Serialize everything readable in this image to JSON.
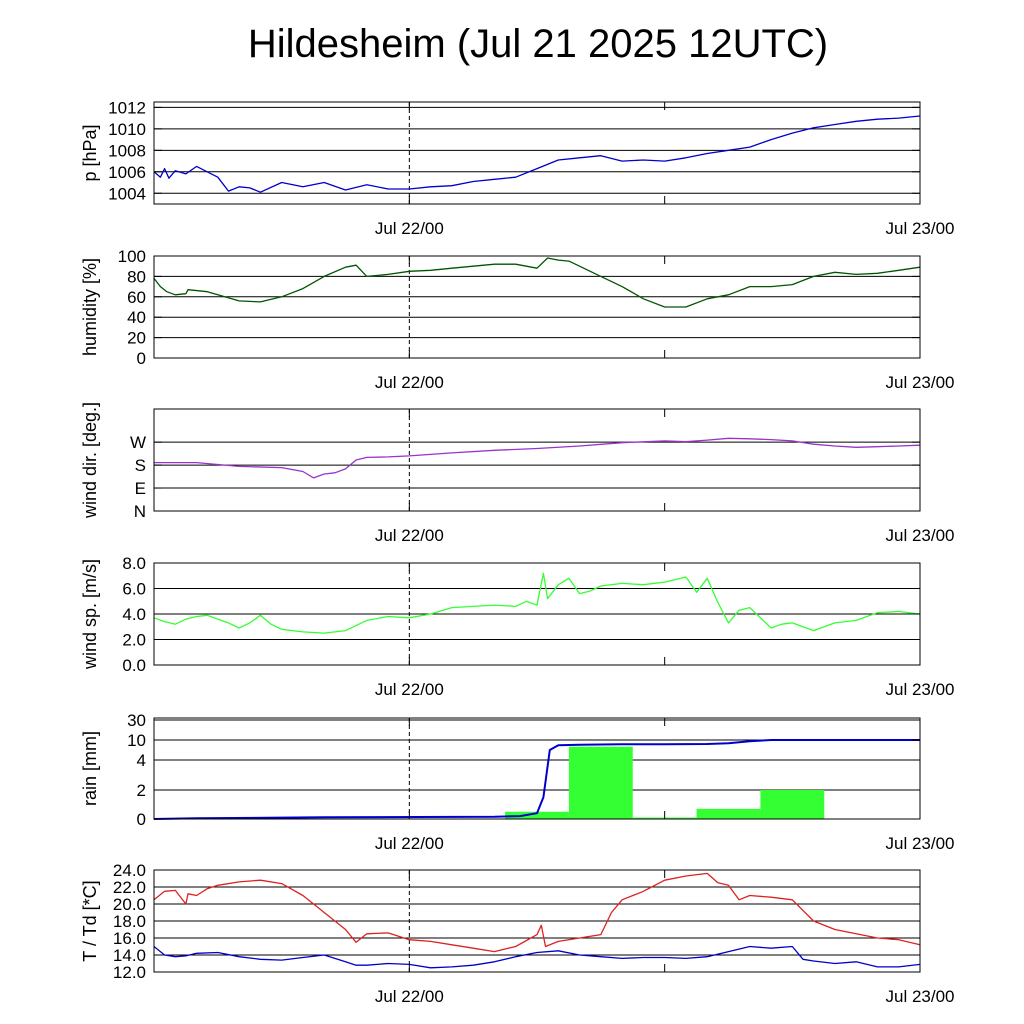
{
  "title": "Hildesheim (Jul 21 2025 12UTC)",
  "x_tick_labels": [
    "Jul 22/00",
    "Jul 23/00"
  ],
  "chart_data": [
    {
      "type": "line",
      "ylabel": "p [hPa]",
      "x_unit": "hours since Jul 21 2025 12UTC",
      "xlim": [
        0,
        36
      ],
      "ylim": [
        1003,
        1012.5
      ],
      "yticks": [
        1004,
        1006,
        1008,
        1010,
        1012
      ],
      "ytick_labels": [
        "1004",
        "1006",
        "1008",
        "1010",
        "1012"
      ],
      "series": [
        {
          "color": "#0000cc",
          "x": [
            0,
            0.3,
            0.5,
            0.7,
            1.0,
            1.5,
            2.0,
            2.5,
            3.0,
            3.5,
            4.0,
            4.5,
            5.0,
            6.0,
            7.0,
            8.0,
            9.0,
            10.0,
            11.0,
            12.0,
            13.0,
            14.0,
            15.0,
            16.0,
            17.0,
            18.0,
            19.0,
            20.0,
            21.0,
            22.0,
            23.0,
            24.0,
            25.0,
            26.0,
            27.0,
            28.0,
            29.0,
            30.0,
            31.0,
            32.0,
            33.0,
            34.0,
            35.0,
            36.0
          ],
          "values": [
            1006.0,
            1005.5,
            1006.3,
            1005.4,
            1006.1,
            1005.8,
            1006.5,
            1006.0,
            1005.5,
            1004.2,
            1004.6,
            1004.5,
            1004.1,
            1005.0,
            1004.6,
            1005.0,
            1004.3,
            1004.8,
            1004.4,
            1004.4,
            1004.6,
            1004.7,
            1005.1,
            1005.3,
            1005.5,
            1006.3,
            1007.1,
            1007.3,
            1007.5,
            1007.0,
            1007.1,
            1007.0,
            1007.3,
            1007.7,
            1008.0,
            1008.3,
            1009.0,
            1009.6,
            1010.1,
            1010.4,
            1010.7,
            1010.9,
            1011.0,
            1011.2
          ]
        }
      ]
    },
    {
      "type": "line",
      "ylabel": "humidity [%]",
      "x_unit": "hours since Jul 21 2025 12UTC",
      "xlim": [
        0,
        36
      ],
      "ylim": [
        0,
        100
      ],
      "yticks": [
        0,
        20,
        40,
        60,
        80,
        100
      ],
      "ytick_labels": [
        "0",
        "20",
        "40",
        "60",
        "80",
        "100"
      ],
      "series": [
        {
          "color": "#005500",
          "x": [
            0,
            0.3,
            0.6,
            1.0,
            1.5,
            1.6,
            2.5,
            3.0,
            4.0,
            5.0,
            6.0,
            7.0,
            8.0,
            9.0,
            9.5,
            10.0,
            11.0,
            12.0,
            13.0,
            14.0,
            15.0,
            16.0,
            17.0,
            18.0,
            18.5,
            19.0,
            19.5,
            20.0,
            21.0,
            22.0,
            23.0,
            24.0,
            25.0,
            26.0,
            27.0,
            28.0,
            29.0,
            30.0,
            31.0,
            32.0,
            33.0,
            34.0,
            35.0,
            36.0
          ],
          "values": [
            78,
            70,
            65,
            62,
            63,
            67,
            65,
            62,
            56,
            55,
            60,
            68,
            80,
            89,
            91,
            80,
            82,
            85,
            86,
            88,
            90,
            92,
            92,
            88,
            98,
            96,
            95,
            90,
            80,
            70,
            58,
            50,
            50,
            58,
            62,
            70,
            70,
            72,
            80,
            84,
            82,
            83,
            86,
            89
          ]
        }
      ]
    },
    {
      "type": "line",
      "ylabel": "wind dir. [deg.]",
      "x_unit": "hours since Jul 21 2025 12UTC",
      "xlim": [
        0,
        36
      ],
      "ylim": [
        0,
        400
      ],
      "yticks": [
        0,
        90,
        180,
        270
      ],
      "ytick_labels": [
        "N",
        "E",
        "S",
        "W"
      ],
      "series": [
        {
          "color": "#9933cc",
          "x": [
            0,
            2,
            4,
            6,
            7,
            7.5,
            8.0,
            8.5,
            9.0,
            9.5,
            10.0,
            11.0,
            12.0,
            13.0,
            14.0,
            16.0,
            18.0,
            20.0,
            22.0,
            24.0,
            25.0,
            26.0,
            27.0,
            28.0,
            29.0,
            30.0,
            31.0,
            32.0,
            33.0,
            34.0,
            35.0,
            36.0
          ],
          "values": [
            190,
            190,
            175,
            170,
            155,
            130,
            145,
            150,
            165,
            200,
            210,
            212,
            216,
            222,
            228,
            238,
            245,
            255,
            268,
            275,
            272,
            278,
            285,
            283,
            280,
            275,
            262,
            255,
            250,
            252,
            255,
            258
          ]
        }
      ]
    },
    {
      "type": "line",
      "ylabel": "wind sp. [m/s]",
      "x_unit": "hours since Jul 21 2025 12UTC",
      "xlim": [
        0,
        36
      ],
      "ylim": [
        0,
        8
      ],
      "yticks": [
        0,
        2,
        4,
        6,
        8
      ],
      "ytick_labels": [
        "0.0",
        "2.0",
        "4.0",
        "6.0",
        "8.0"
      ],
      "series": [
        {
          "color": "#33ff33",
          "x": [
            0,
            0.5,
            1.0,
            1.5,
            2.0,
            2.5,
            3.0,
            3.5,
            4.0,
            4.5,
            5.0,
            5.5,
            6.0,
            6.5,
            7.0,
            8.0,
            9.0,
            10.0,
            11.0,
            12.0,
            13.0,
            14.0,
            15.0,
            16.0,
            17.0,
            17.5,
            18.0,
            18.3,
            18.5,
            19.0,
            19.5,
            20.0,
            20.5,
            21.0,
            22.0,
            23.0,
            24.0,
            25.0,
            25.5,
            26.0,
            26.5,
            27.0,
            27.5,
            28.0,
            29.0,
            29.5,
            30.0,
            31.0,
            32.0,
            33.0,
            34.0,
            35.0,
            36.0
          ],
          "values": [
            3.7,
            3.4,
            3.2,
            3.6,
            3.8,
            3.9,
            3.6,
            3.3,
            2.9,
            3.3,
            3.9,
            3.2,
            2.8,
            2.7,
            2.6,
            2.5,
            2.7,
            3.5,
            3.8,
            3.7,
            4.0,
            4.5,
            4.6,
            4.7,
            4.6,
            5.0,
            4.7,
            7.2,
            5.2,
            6.3,
            6.8,
            5.6,
            5.8,
            6.2,
            6.4,
            6.3,
            6.5,
            6.9,
            5.7,
            6.8,
            4.9,
            3.3,
            4.3,
            4.5,
            2.9,
            3.2,
            3.3,
            2.7,
            3.3,
            3.5,
            4.1,
            4.2,
            4.0
          ]
        }
      ]
    },
    {
      "type": "bar",
      "ylabel": "rain [mm]",
      "x_unit": "hours since Jul 21 2025 12UTC",
      "xlim": [
        0,
        36
      ],
      "ytick_labels": [
        "0",
        "2",
        "4",
        "10",
        "30"
      ],
      "bars": [
        {
          "x0": 16.5,
          "x1": 19.5,
          "value": 0.5,
          "color": "#33ff33"
        },
        {
          "x0": 19.5,
          "x1": 22.5,
          "value": 8.0,
          "color": "#33ff33"
        },
        {
          "x0": 22.5,
          "x1": 25.5,
          "value": 0.1,
          "color": "#33ff33"
        },
        {
          "x0": 25.5,
          "x1": 28.5,
          "value": 0.7,
          "color": "#33ff33"
        },
        {
          "x0": 28.5,
          "x1": 31.5,
          "value": 2.0,
          "color": "#33ff33"
        }
      ],
      "series": [
        {
          "color": "#0000cc",
          "x": [
            0,
            2,
            8,
            16,
            17.2,
            18.0,
            18.3,
            18.6,
            19.0,
            20.0,
            22.0,
            24.0,
            26.0,
            27.0,
            28.0,
            29.0,
            30.0,
            32.0,
            36.0
          ],
          "values": [
            0.0,
            0.05,
            0.12,
            0.15,
            0.2,
            0.4,
            1.5,
            7.0,
            8.4,
            8.6,
            8.7,
            8.7,
            8.8,
            9.0,
            9.6,
            10.0,
            10.0,
            10.0,
            10.0
          ]
        }
      ]
    },
    {
      "type": "line",
      "ylabel": "T / Td [*C]",
      "x_unit": "hours since Jul 21 2025 12UTC",
      "xlim": [
        0,
        36
      ],
      "ylim": [
        12,
        24
      ],
      "yticks": [
        12,
        14,
        16,
        18,
        20,
        22,
        24
      ],
      "ytick_labels": [
        "12.0",
        "14.0",
        "16.0",
        "18.0",
        "20.0",
        "22.0",
        "24.0"
      ],
      "series": [
        {
          "color": "#dd2222",
          "x": [
            0,
            0.5,
            1.0,
            1.5,
            1.6,
            2.0,
            2.5,
            3.0,
            4.0,
            5.0,
            6.0,
            7.0,
            8.0,
            9.0,
            9.5,
            10.0,
            11.0,
            12.0,
            13.0,
            14.0,
            15.0,
            16.0,
            17.0,
            18.0,
            18.2,
            18.4,
            19.0,
            20.0,
            21.0,
            21.5,
            22.0,
            23.0,
            24.0,
            25.0,
            26.0,
            26.5,
            27.0,
            27.5,
            28.0,
            29.0,
            30.0,
            31.0,
            32.0,
            33.0,
            34.0,
            35.0,
            36.0
          ],
          "values": [
            20.5,
            21.5,
            21.6,
            20.0,
            21.2,
            21.0,
            21.8,
            22.2,
            22.6,
            22.8,
            22.4,
            21.0,
            19.0,
            17.0,
            15.5,
            16.5,
            16.6,
            15.8,
            15.6,
            15.2,
            14.8,
            14.4,
            15.0,
            16.4,
            17.5,
            15.0,
            15.6,
            16.0,
            16.4,
            19.0,
            20.5,
            21.5,
            22.8,
            23.3,
            23.6,
            22.5,
            22.2,
            20.5,
            21.0,
            20.8,
            20.5,
            18.0,
            17.0,
            16.5,
            16.0,
            15.8,
            15.2
          ]
        },
        {
          "color": "#0000cc",
          "x": [
            0,
            0.5,
            1.0,
            1.5,
            2.0,
            3.0,
            4.0,
            5.0,
            6.0,
            7.0,
            8.0,
            9.0,
            9.5,
            10.0,
            11.0,
            12.0,
            13.0,
            14.0,
            15.0,
            16.0,
            17.0,
            18.0,
            19.0,
            20.0,
            21.0,
            22.0,
            23.0,
            24.0,
            25.0,
            26.0,
            27.0,
            28.0,
            29.0,
            30.0,
            30.5,
            31.0,
            32.0,
            33.0,
            34.0,
            35.0,
            36.0
          ],
          "values": [
            15.0,
            14.0,
            13.8,
            13.9,
            14.2,
            14.3,
            13.8,
            13.5,
            13.4,
            13.7,
            14.0,
            13.2,
            12.8,
            12.8,
            13.0,
            12.9,
            12.5,
            12.6,
            12.8,
            13.2,
            13.8,
            14.3,
            14.5,
            14.0,
            13.8,
            13.6,
            13.7,
            13.7,
            13.6,
            13.8,
            14.4,
            15.0,
            14.8,
            15.0,
            13.5,
            13.3,
            13.0,
            13.2,
            12.6,
            12.6,
            12.9
          ]
        }
      ]
    }
  ]
}
